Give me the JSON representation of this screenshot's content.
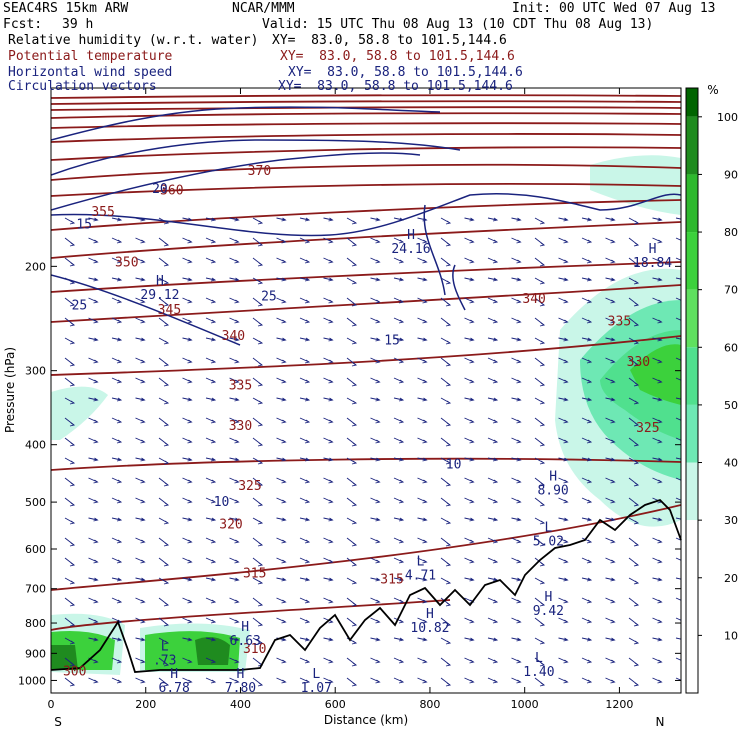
{
  "header": {
    "model": "SEAC4RS 15km ARW",
    "center": "NCAR/MMM",
    "init": "Init: 00 UTC Wed 07 Aug 13",
    "fcst_label": "Fcst:",
    "fcst_value": "39 h",
    "valid": "Valid: 15 UTC Thu 08 Aug 13 (10 CDT Thu 08 Aug 13)"
  },
  "fields": [
    {
      "name": "Relative humidity (w.r.t. water)",
      "xy": "XY=  83.0, 58.8 to 101.5,144.6",
      "color": "#000000"
    },
    {
      "name": "Potential temperature",
      "xy": "XY=  83.0, 58.8 to 101.5,144.6",
      "color": "#8b1a1a"
    },
    {
      "name": "Horizontal wind speed",
      "xy": "XY=  83.0, 58.8 to 101.5,144.6",
      "color": "#1a237e"
    },
    {
      "name": "Circulation vectors",
      "xy": "XY=  83.0, 58.8 to 101.5,144.6",
      "color": "#1a237e"
    }
  ],
  "chart_data": {
    "type": "cross-section",
    "xlabel": "Distance (km)",
    "ylabel": "Pressure (hPa)",
    "xlim": [
      0,
      1330
    ],
    "ylim": [
      1050,
      100
    ],
    "y_scale": "log-pressure",
    "x_ticks": [
      0,
      200,
      400,
      600,
      800,
      1000,
      1200
    ],
    "y_ticks": [
      200,
      300,
      400,
      500,
      600,
      700,
      800,
      900,
      1000
    ],
    "x_end_labels": {
      "left": "S",
      "right": "N"
    },
    "colorbar": {
      "unit": "%",
      "ticks": [
        10,
        20,
        30,
        40,
        50,
        60,
        70,
        80,
        90,
        100
      ],
      "levels": [
        {
          "from": 100,
          "to": 105,
          "color": "#006400"
        },
        {
          "from": 90,
          "to": 100,
          "color": "#1f8b1f"
        },
        {
          "from": 80,
          "to": 90,
          "color": "#2eb82e"
        },
        {
          "from": 70,
          "to": 80,
          "color": "#3cd13c"
        },
        {
          "from": 60,
          "to": 70,
          "color": "#5fe05f"
        },
        {
          "from": 50,
          "to": 60,
          "color": "#50e08e"
        },
        {
          "from": 40,
          "to": 50,
          "color": "#6ee8b4"
        },
        {
          "from": 30,
          "to": 40,
          "color": "#c9f6e8"
        },
        {
          "from": 0,
          "to": 30,
          "color": "#ffffff"
        }
      ]
    },
    "theta_contour_labels": [
      {
        "value": "300",
        "x": 50,
        "p": 965
      },
      {
        "value": "310",
        "x": 430,
        "p": 885
      },
      {
        "value": "315",
        "x": 430,
        "p": 660
      },
      {
        "value": "315",
        "x": 720,
        "p": 675
      },
      {
        "value": "320",
        "x": 380,
        "p": 545
      },
      {
        "value": "325",
        "x": 420,
        "p": 470
      },
      {
        "value": "325",
        "x": 1260,
        "p": 375
      },
      {
        "value": "330",
        "x": 400,
        "p": 372
      },
      {
        "value": "330",
        "x": 1240,
        "p": 290
      },
      {
        "value": "335",
        "x": 400,
        "p": 318
      },
      {
        "value": "335",
        "x": 1200,
        "p": 248
      },
      {
        "value": "340",
        "x": 385,
        "p": 262
      },
      {
        "value": "340",
        "x": 1020,
        "p": 227
      },
      {
        "value": "345",
        "x": 250,
        "p": 237
      },
      {
        "value": "350",
        "x": 160,
        "p": 197
      },
      {
        "value": "355",
        "x": 110,
        "p": 162
      },
      {
        "value": "360",
        "x": 255,
        "p": 149
      },
      {
        "value": "370",
        "x": 440,
        "p": 138
      }
    ],
    "wind_contour_labels": [
      {
        "value": "10",
        "x": 360,
        "p": 500
      },
      {
        "value": "10",
        "x": 850,
        "p": 432
      },
      {
        "value": "15",
        "x": 70,
        "p": 170
      },
      {
        "value": "15",
        "x": 720,
        "p": 267
      },
      {
        "value": "20",
        "x": 230,
        "p": 148
      },
      {
        "value": "25",
        "x": 60,
        "p": 233
      },
      {
        "value": "25",
        "x": 460,
        "p": 225
      }
    ],
    "extrema": [
      {
        "type": "H",
        "value": "6.63",
        "x": 410,
        "p": 825
      },
      {
        "type": "H",
        "value": "10.82",
        "x": 800,
        "p": 785
      },
      {
        "type": "H",
        "value": "9.42",
        "x": 1050,
        "p": 735
      },
      {
        "type": "H",
        "value": "8.90",
        "x": 1060,
        "p": 460
      },
      {
        "type": "H",
        "value": "6.78",
        "x": 260,
        "p": 990
      },
      {
        "type": "H",
        "value": "7.80",
        "x": 400,
        "p": 990
      },
      {
        "type": "H",
        "value": "24.16",
        "x": 760,
        "p": 180
      },
      {
        "type": "H",
        "value": "29.12",
        "x": 230,
        "p": 215
      },
      {
        "type": "H",
        "value": "18.84",
        "x": 1270,
        "p": 190
      },
      {
        "type": "L",
        "value": "4.71",
        "x": 780,
        "p": 640
      },
      {
        "type": "L",
        "value": "5.02",
        "x": 1050,
        "p": 560
      },
      {
        "type": "L",
        "value": ".73",
        "x": 240,
        "p": 890
      },
      {
        "type": "L",
        "value": "1.07",
        "x": 560,
        "p": 990
      },
      {
        "type": "L",
        "value": "1.40",
        "x": 1030,
        "p": 930
      }
    ]
  }
}
